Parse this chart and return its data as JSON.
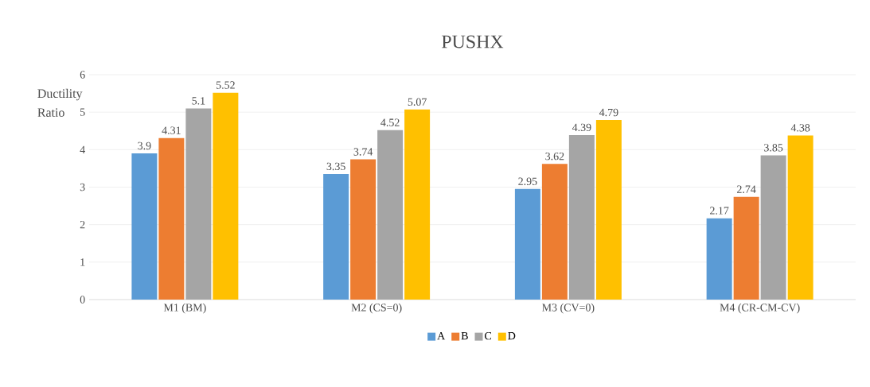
{
  "chart_data": {
    "type": "bar",
    "title": "PUSHX",
    "ylabel": "Ductility Ratio",
    "categories": [
      "M1 (BM)",
      "M2 (CS=0)",
      "M3 (CV=0)",
      "M4 (CR-CM-CV)"
    ],
    "series": [
      {
        "name": "A",
        "color": "#5b9bd5",
        "values": [
          3.9,
          3.35,
          2.95,
          2.17
        ]
      },
      {
        "name": "B",
        "color": "#ed7d31",
        "values": [
          4.31,
          3.74,
          3.62,
          2.74
        ]
      },
      {
        "name": "C",
        "color": "#a5a5a5",
        "values": [
          5.1,
          4.52,
          4.39,
          3.85
        ]
      },
      {
        "name": "D",
        "color": "#ffc000",
        "values": [
          5.52,
          5.07,
          4.79,
          4.38
        ]
      }
    ],
    "ylim": [
      0,
      6
    ],
    "yticks": [
      0,
      1,
      2,
      3,
      4,
      5,
      6
    ],
    "grid": "y",
    "legend": "bottom",
    "data_labels": true
  }
}
